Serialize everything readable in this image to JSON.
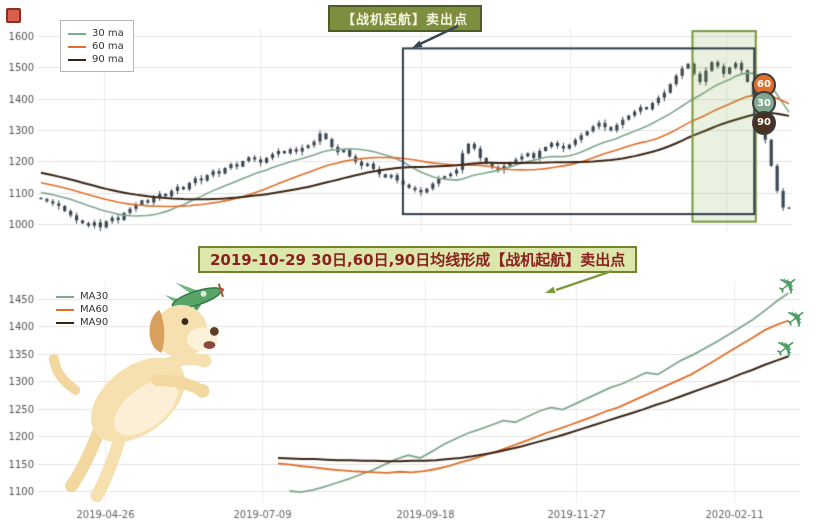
{
  "arrows": {
    "top_color": "#3a4553",
    "bottom_color": "#7a9a3e"
  },
  "chart_data": [
    {
      "type": "candlestick",
      "title": "",
      "xlabel": "",
      "ylabel": "",
      "ylim": [
        975,
        1625
      ],
      "yticks": [
        1000,
        1100,
        1200,
        1300,
        1400,
        1500,
        1600
      ],
      "grid": true,
      "legend_position": "top-left",
      "banner": {
        "text": "【战机起航】卖出点",
        "bg": "#7d8f3e",
        "border": "#4d5c26",
        "color": "#f5f2e0"
      },
      "annotation_rect": {
        "x0": 0.484,
        "x1": 0.95,
        "v0": 1032,
        "v1": 1560,
        "color": "#2f3b4c"
      },
      "highlight_zone": {
        "x0": 0.868,
        "x1": 0.952,
        "v0": 1008,
        "v1": 1615,
        "fill": "rgba(128,170,60,0.16)",
        "stroke": "#76973c"
      },
      "badges": [
        {
          "label": "60",
          "value": 1450,
          "color": "#e06f2b"
        },
        {
          "label": "30",
          "value": 1392,
          "color": "#7fa88e"
        },
        {
          "label": "90",
          "value": 1330,
          "color": "#4a3020"
        }
      ],
      "candle_color": "#3d4852",
      "series": [
        {
          "label": "30 ma",
          "color": "#7fa88e",
          "window": 15
        },
        {
          "label": "60 ma",
          "color": "#e06f2b",
          "window": 30
        },
        {
          "label": "90 ma",
          "color": "#3a2414",
          "window": 45
        }
      ],
      "pre_close": [
        1262,
        1256,
        1250,
        1253,
        1246,
        1240,
        1234,
        1237,
        1229,
        1222,
        1216,
        1219,
        1210,
        1204,
        1198,
        1201,
        1192,
        1186,
        1189,
        1180,
        1173,
        1176,
        1167,
        1160,
        1163,
        1154,
        1147,
        1150,
        1141,
        1134,
        1137,
        1128,
        1121,
        1124,
        1115,
        1108,
        1111,
        1103,
        1096,
        1099,
        1091,
        1085,
        1088,
        1081,
        1084
      ],
      "close": [
        1080,
        1073,
        1066,
        1058,
        1042,
        1028,
        1012,
        1003,
        995,
        1006,
        990,
        1009,
        1021,
        1013,
        1036,
        1049,
        1061,
        1076,
        1069,
        1086,
        1096,
        1089,
        1106,
        1119,
        1111,
        1131,
        1146,
        1139,
        1156,
        1169,
        1161,
        1179,
        1191,
        1183,
        1201,
        1213,
        1206,
        1196,
        1211,
        1223,
        1233,
        1226,
        1239,
        1231,
        1243,
        1251,
        1263,
        1289,
        1271,
        1246,
        1229,
        1236,
        1216,
        1199,
        1186,
        1193,
        1176,
        1159,
        1149,
        1156,
        1139,
        1126,
        1116,
        1109,
        1101,
        1113,
        1129,
        1146,
        1153,
        1161,
        1173,
        1226,
        1256,
        1241,
        1211,
        1193,
        1181,
        1173,
        1186,
        1196,
        1206,
        1216,
        1226,
        1211,
        1233,
        1246,
        1259,
        1249,
        1241,
        1253,
        1269,
        1283,
        1296,
        1311,
        1323,
        1309,
        1299,
        1316,
        1333,
        1346,
        1359,
        1373,
        1366,
        1386,
        1403,
        1419,
        1446,
        1473,
        1496,
        1511,
        1479,
        1453,
        1489,
        1516,
        1503,
        1479,
        1499,
        1513,
        1491,
        1453,
        1406,
        1343,
        1269,
        1186,
        1106,
        1053,
        1050
      ]
    },
    {
      "type": "line",
      "title": "",
      "xlabel": "",
      "ylabel": "",
      "ylim": [
        1080,
        1480
      ],
      "yticks": [
        1100,
        1150,
        1200,
        1250,
        1300,
        1350,
        1400,
        1450
      ],
      "grid": true,
      "xticks": {
        "labels": [
          "2019-04-26",
          "2019-07-09",
          "2019-09-18",
          "2019-11-27",
          "2020-02-11"
        ],
        "fracs": [
          0.088,
          0.294,
          0.508,
          0.706,
          0.913
        ]
      },
      "banner": {
        "text": "2019-10-29 30日,60日,90日均线形成【战机起航】卖出点",
        "bg": "#dce8ab",
        "border": "#72822f",
        "color": "#8b2020"
      },
      "series": [
        {
          "name": "MA30",
          "color": "#7fa88e",
          "start_frac": 0.33,
          "end_frac": 0.985,
          "values": [
            1100,
            1098,
            1102,
            1108,
            1115,
            1122,
            1130,
            1138,
            1148,
            1158,
            1165,
            1160,
            1172,
            1185,
            1195,
            1205,
            1212,
            1220,
            1228,
            1225,
            1235,
            1245,
            1252,
            1248,
            1258,
            1268,
            1278,
            1288,
            1295,
            1305,
            1315,
            1312,
            1325,
            1338,
            1348,
            1360,
            1372,
            1385,
            1398,
            1412,
            1428,
            1445,
            1460
          ]
        },
        {
          "name": "MA60",
          "color": "#e06f2b",
          "start_frac": 0.315,
          "end_frac": 0.985,
          "values": [
            1150,
            1148,
            1145,
            1143,
            1140,
            1138,
            1136,
            1135,
            1134,
            1133,
            1135,
            1134,
            1136,
            1140,
            1145,
            1152,
            1158,
            1165,
            1172,
            1180,
            1188,
            1196,
            1205,
            1212,
            1220,
            1228,
            1236,
            1245,
            1252,
            1262,
            1272,
            1282,
            1292,
            1302,
            1312,
            1325,
            1338,
            1352,
            1365,
            1378,
            1392,
            1402,
            1410
          ]
        },
        {
          "name": "MA90",
          "color": "#3a2414",
          "start_frac": 0.315,
          "end_frac": 0.985,
          "values": [
            1160,
            1159,
            1158,
            1158,
            1157,
            1156,
            1156,
            1155,
            1155,
            1154,
            1154,
            1155,
            1155,
            1156,
            1158,
            1160,
            1163,
            1167,
            1171,
            1176,
            1181,
            1187,
            1193,
            1199,
            1206,
            1213,
            1220,
            1227,
            1234,
            1241,
            1248,
            1256,
            1263,
            1271,
            1279,
            1287,
            1295,
            1303,
            1312,
            1320,
            1329,
            1337,
            1345
          ]
        }
      ],
      "planes": {
        "glyph": "✈",
        "color": "#4f9e63",
        "values": [
          1468,
          1408,
          1352
        ]
      }
    }
  ]
}
